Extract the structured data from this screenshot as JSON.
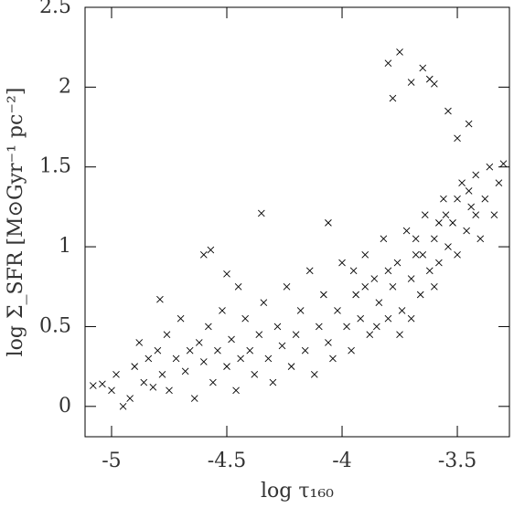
{
  "chart_data": {
    "type": "scatter",
    "xlabel": "log τ₁₆₀",
    "ylabel": "log Σ_SFR [M⊙Gyr⁻¹ pc⁻²]",
    "color": "#000000",
    "xlim": [
      -5.115,
      -3.274
    ],
    "ylim": [
      -0.19,
      2.5
    ],
    "xticks": [
      -5,
      -4.5,
      -4,
      -3.5
    ],
    "yticks": [
      0,
      0.5,
      1,
      1.5,
      2,
      2.5
    ],
    "series": [
      {
        "name": "points",
        "color": "#000000",
        "x": [
          -5.08,
          -5.04,
          -5.0,
          -4.98,
          -4.95,
          -4.92,
          -4.9,
          -4.88,
          -4.86,
          -4.84,
          -4.82,
          -4.8,
          -4.78,
          -4.76,
          -4.75,
          -4.72,
          -4.7,
          -4.68,
          -4.66,
          -4.64,
          -4.62,
          -4.6,
          -4.58,
          -4.56,
          -4.54,
          -4.52,
          -4.5,
          -4.48,
          -4.46,
          -4.44,
          -4.42,
          -4.4,
          -4.38,
          -4.36,
          -4.34,
          -4.32,
          -4.3,
          -4.28,
          -4.26,
          -4.24,
          -4.22,
          -4.2,
          -4.18,
          -4.16,
          -4.14,
          -4.12,
          -4.1,
          -4.08,
          -4.06,
          -4.04,
          -4.02,
          -4.0,
          -3.98,
          -3.96,
          -3.94,
          -3.92,
          -3.9,
          -3.88,
          -3.86,
          -3.84,
          -3.82,
          -3.8,
          -3.78,
          -3.76,
          -3.74,
          -3.72,
          -3.7,
          -3.68,
          -3.66,
          -3.64,
          -3.62,
          -3.6,
          -3.58,
          -3.56,
          -3.54,
          -3.52,
          -3.5,
          -3.48,
          -3.46,
          -3.44,
          -3.42,
          -3.4,
          -3.38,
          -3.36,
          -3.34,
          -3.32,
          -3.85,
          -3.75,
          -3.7,
          -3.6,
          -3.9,
          -3.95,
          -3.55,
          -3.45,
          -3.65,
          -3.8,
          -3.68,
          -3.58,
          -3.5,
          -3.42,
          -4.6,
          -4.45,
          -3.8,
          -3.75,
          -3.65,
          -3.78,
          -3.7,
          -3.62,
          -3.6,
          -3.54,
          -3.45,
          -3.5,
          -3.3,
          -4.79,
          -4.5,
          -4.35,
          -4.57,
          -4.06
        ],
        "y": [
          0.13,
          0.14,
          0.1,
          0.2,
          0.0,
          0.05,
          0.25,
          0.4,
          0.15,
          0.3,
          0.12,
          0.35,
          0.2,
          0.45,
          0.1,
          0.3,
          0.55,
          0.22,
          0.35,
          0.05,
          0.4,
          0.28,
          0.5,
          0.15,
          0.35,
          0.6,
          0.25,
          0.42,
          0.1,
          0.3,
          0.55,
          0.35,
          0.2,
          0.45,
          0.65,
          0.3,
          0.15,
          0.5,
          0.38,
          0.75,
          0.25,
          0.45,
          0.6,
          0.35,
          0.85,
          0.2,
          0.5,
          0.7,
          0.4,
          0.3,
          0.6,
          0.9,
          0.5,
          0.35,
          0.7,
          0.55,
          0.95,
          0.45,
          0.8,
          0.65,
          1.05,
          0.55,
          0.75,
          0.9,
          0.6,
          1.1,
          0.8,
          0.95,
          0.7,
          1.2,
          0.85,
          1.05,
          0.9,
          1.3,
          1.0,
          1.15,
          0.95,
          1.4,
          1.1,
          1.25,
          1.45,
          1.05,
          1.3,
          1.5,
          1.2,
          1.4,
          0.5,
          0.45,
          0.55,
          0.75,
          0.75,
          0.85,
          1.2,
          1.35,
          0.95,
          0.85,
          1.05,
          1.15,
          1.3,
          1.2,
          0.95,
          0.75,
          2.15,
          2.22,
          2.12,
          1.93,
          2.03,
          2.05,
          2.02,
          1.85,
          1.77,
          1.68,
          1.52,
          0.67,
          0.83,
          1.21,
          0.98,
          1.15
        ]
      }
    ]
  }
}
